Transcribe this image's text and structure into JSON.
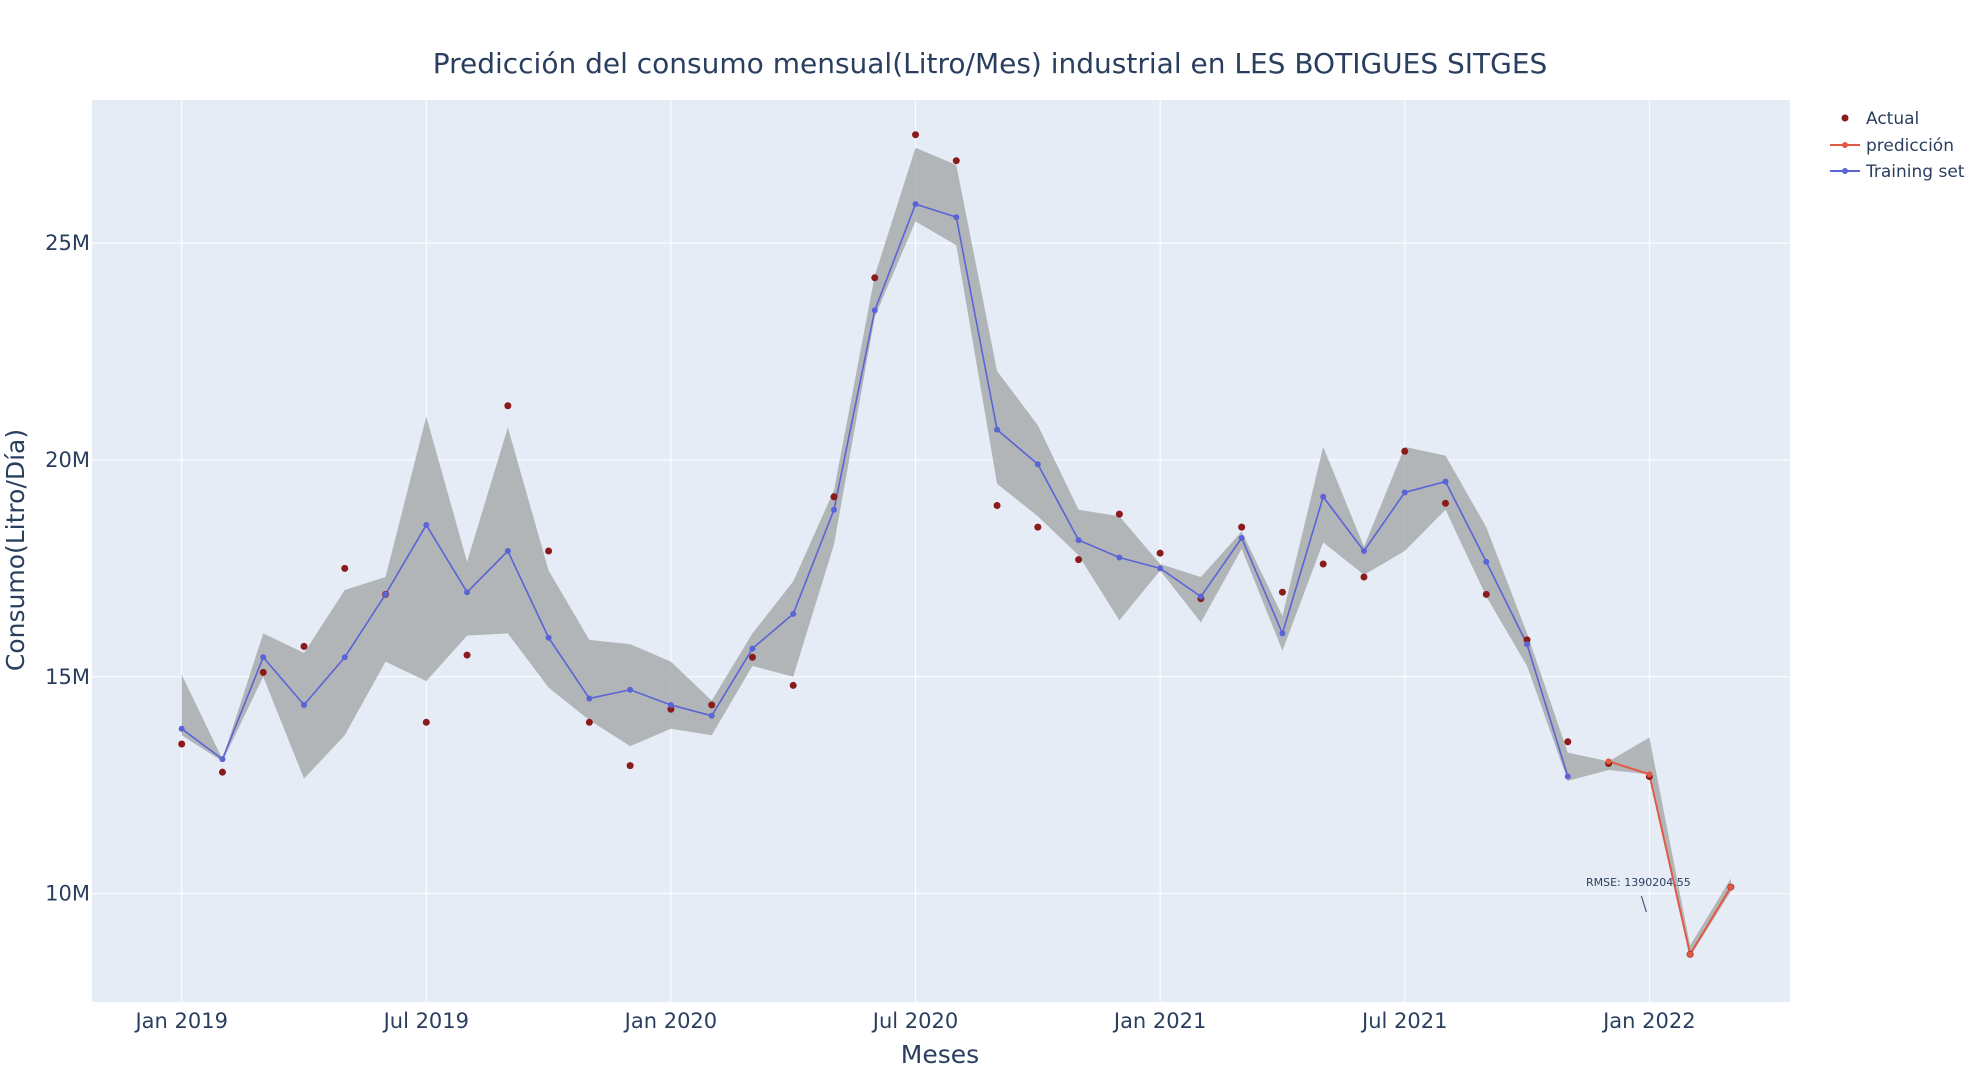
{
  "chart_data": {
    "type": "line",
    "title": "Predicción del consumo mensual(Litro/Mes) industrial en LES BOTIGUES SITGES",
    "xlabel": "Meses",
    "ylabel": "Consumo(Litro/Día)",
    "x_ticks": [
      "Jan 2019",
      "Jul 2019",
      "Jan 2020",
      "Jul 2020",
      "Jan 2021",
      "Jul 2021",
      "Jan 2022"
    ],
    "y_ticks": [
      "10M",
      "15M",
      "20M",
      "25M"
    ],
    "ylim": [
      7500000,
      28300000
    ],
    "grid": true,
    "legend_position": "top-right",
    "colors": {
      "actual": "#8b1a1a",
      "prediction": "#e05a44",
      "training": "#5a64d6",
      "band": "#a9abad",
      "plot_bg": "#e5ecf6"
    },
    "annotation": "RMSE: 1390204.55",
    "series": [
      {
        "name": "Actual",
        "mode": "markers",
        "x": [
          "2019-01",
          "2019-02",
          "2019-03",
          "2019-04",
          "2019-05",
          "2019-06",
          "2019-07",
          "2019-08",
          "2019-09",
          "2019-10",
          "2019-11",
          "2019-12",
          "2020-01",
          "2020-02",
          "2020-03",
          "2020-04",
          "2020-05",
          "2020-06",
          "2020-07",
          "2020-08",
          "2020-09",
          "2020-10",
          "2020-11",
          "2020-12",
          "2021-01",
          "2021-02",
          "2021-03",
          "2021-04",
          "2021-05",
          "2021-06",
          "2021-07",
          "2021-08",
          "2021-09",
          "2021-10",
          "2021-11",
          "2021-12",
          "2022-01",
          "2022-02",
          "2022-03"
        ],
        "values": [
          13450000,
          12800000,
          15100000,
          15700000,
          17500000,
          16900000,
          13950000,
          15500000,
          21250000,
          17900000,
          13950000,
          12950000,
          14250000,
          14350000,
          15450000,
          14800000,
          19150000,
          24200000,
          27500000,
          26900000,
          18950000,
          18450000,
          17700000,
          18750000,
          17850000,
          16800000,
          18450000,
          16950000,
          17600000,
          17300000,
          20200000,
          19000000,
          16900000,
          15850000,
          13500000,
          13000000,
          12700000,
          8600000,
          10150000
        ]
      },
      {
        "name": "predicción",
        "mode": "lines+markers",
        "x": [
          "2021-12",
          "2022-01",
          "2022-02",
          "2022-03"
        ],
        "values": [
          13050000,
          12750000,
          8600000,
          10150000
        ]
      },
      {
        "name": "Training set",
        "mode": "lines+markers",
        "x": [
          "2019-01",
          "2019-02",
          "2019-03",
          "2019-04",
          "2019-05",
          "2019-06",
          "2019-07",
          "2019-08",
          "2019-09",
          "2019-10",
          "2019-11",
          "2019-12",
          "2020-01",
          "2020-02",
          "2020-03",
          "2020-04",
          "2020-05",
          "2020-06",
          "2020-07",
          "2020-08",
          "2020-09",
          "2020-10",
          "2020-11",
          "2020-12",
          "2021-01",
          "2021-02",
          "2021-03",
          "2021-04",
          "2021-05",
          "2021-06",
          "2021-07",
          "2021-08",
          "2021-09",
          "2021-10",
          "2021-11"
        ],
        "values": [
          13800000,
          13100000,
          15450000,
          14350000,
          15450000,
          16900000,
          18500000,
          16950000,
          17900000,
          15900000,
          14500000,
          14700000,
          14350000,
          14100000,
          15650000,
          16450000,
          18850000,
          23450000,
          25900000,
          25600000,
          20700000,
          19900000,
          18150000,
          17750000,
          17500000,
          16850000,
          18200000,
          16000000,
          19150000,
          17900000,
          19250000,
          19500000,
          17650000,
          15750000,
          12700000
        ]
      }
    ],
    "band": {
      "name": "confidence interval",
      "x": [
        "2019-01",
        "2019-02",
        "2019-03",
        "2019-04",
        "2019-05",
        "2019-06",
        "2019-07",
        "2019-08",
        "2019-09",
        "2019-10",
        "2019-11",
        "2019-12",
        "2020-01",
        "2020-02",
        "2020-03",
        "2020-04",
        "2020-05",
        "2020-06",
        "2020-07",
        "2020-08",
        "2020-09",
        "2020-10",
        "2020-11",
        "2020-12",
        "2021-01",
        "2021-02",
        "2021-03",
        "2021-04",
        "2021-05",
        "2021-06",
        "2021-07",
        "2021-08",
        "2021-09",
        "2021-10",
        "2021-11",
        "2021-12",
        "2022-01",
        "2022-02",
        "2022-03"
      ],
      "upper": [
        15050000,
        13100000,
        16000000,
        15550000,
        17000000,
        17300000,
        21000000,
        17650000,
        20750000,
        17450000,
        15850000,
        15750000,
        15350000,
        14450000,
        16000000,
        17200000,
        19300000,
        24250000,
        27200000,
        26800000,
        22050000,
        20800000,
        18850000,
        18700000,
        17600000,
        17300000,
        18350000,
        16400000,
        20300000,
        18000000,
        20300000,
        20100000,
        18450000,
        16000000,
        13250000,
        13050000,
        13600000,
        8800000,
        10350000
      ],
      "lower": [
        13650000,
        13050000,
        15000000,
        12650000,
        13650000,
        15350000,
        14900000,
        15950000,
        16000000,
        14750000,
        14000000,
        13400000,
        13800000,
        13650000,
        15250000,
        15000000,
        18050000,
        23300000,
        25500000,
        24950000,
        19450000,
        18700000,
        17800000,
        16300000,
        17450000,
        16250000,
        17950000,
        15600000,
        18100000,
        17350000,
        17900000,
        18850000,
        16850000,
        15250000,
        12600000,
        12850000,
        12750000,
        8550000,
        10050000
      ]
    }
  }
}
